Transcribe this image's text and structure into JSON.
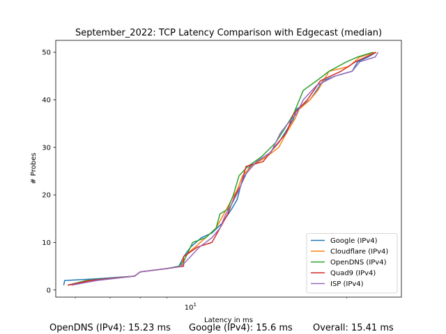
{
  "chart_data": {
    "type": "line",
    "title": "September_2022: TCP Latency Comparison with Edgecast (median)",
    "xlabel": "Latency in ms",
    "ylabel": "# Probes",
    "xscale": "log",
    "xlim": [
      5.5,
      25.5
    ],
    "ylim": [
      -1.5,
      52.5
    ],
    "x_tick_labels": [
      {
        "value": 10,
        "label": "10^1"
      }
    ],
    "y_ticks": [
      0,
      10,
      20,
      30,
      40,
      50
    ],
    "grid": false,
    "legend_position": "lower right",
    "series": [
      {
        "name": "Google (IPv4)",
        "color": "#1f77b4",
        "points": [
          [
            5.7,
            1
          ],
          [
            5.72,
            2
          ],
          [
            6.5,
            2.3
          ],
          [
            7.8,
            2.9
          ],
          [
            8.0,
            3.8
          ],
          [
            9.0,
            4.5
          ],
          [
            9.5,
            5
          ],
          [
            9.6,
            6
          ],
          [
            9.7,
            7
          ],
          [
            10.0,
            9
          ],
          [
            10.5,
            11
          ],
          [
            11,
            12
          ],
          [
            11.5,
            14
          ],
          [
            12,
            17
          ],
          [
            12.3,
            19
          ],
          [
            12.5,
            22
          ],
          [
            13,
            26
          ],
          [
            14,
            28
          ],
          [
            14.8,
            31
          ],
          [
            15.2,
            33
          ],
          [
            15.8,
            36
          ],
          [
            16,
            38
          ],
          [
            17,
            40
          ],
          [
            17.5,
            42
          ],
          [
            18,
            44
          ],
          [
            19,
            45
          ],
          [
            20.5,
            46
          ],
          [
            21,
            48
          ],
          [
            22,
            49
          ],
          [
            22.8,
            50
          ]
        ]
      },
      {
        "name": "Cloudflare (IPv4)",
        "color": "#ff7f0e",
        "points": [
          [
            5.8,
            1
          ],
          [
            6.5,
            2
          ],
          [
            7.8,
            2.9
          ],
          [
            8.0,
            3.8
          ],
          [
            9.0,
            4.5
          ],
          [
            9.6,
            5
          ],
          [
            9.7,
            7
          ],
          [
            10.2,
            9
          ],
          [
            10.7,
            11
          ],
          [
            11.2,
            13
          ],
          [
            11.6,
            16
          ],
          [
            12,
            19
          ],
          [
            12.3,
            21
          ],
          [
            12.6,
            24
          ],
          [
            13.1,
            26
          ],
          [
            14,
            28
          ],
          [
            14.8,
            30
          ],
          [
            15.3,
            33
          ],
          [
            15.9,
            36
          ],
          [
            16.2,
            38
          ],
          [
            17,
            40
          ],
          [
            17.6,
            42
          ],
          [
            18.5,
            46
          ],
          [
            20.2,
            47
          ],
          [
            21.2,
            49
          ],
          [
            22.7,
            50
          ]
        ]
      },
      {
        "name": "OpenDNS (IPv4)",
        "color": "#2ca02c",
        "points": [
          [
            5.8,
            1
          ],
          [
            6.3,
            2
          ],
          [
            7.8,
            2.9
          ],
          [
            8.0,
            3.8
          ],
          [
            9.0,
            4.5
          ],
          [
            9.5,
            5
          ],
          [
            9.7,
            6
          ],
          [
            10.1,
            10
          ],
          [
            10.7,
            11
          ],
          [
            11.2,
            13
          ],
          [
            11.4,
            16
          ],
          [
            11.8,
            17
          ],
          [
            12.1,
            20
          ],
          [
            12.4,
            24
          ],
          [
            12.9,
            26
          ],
          [
            13.7,
            28
          ],
          [
            14.6,
            31
          ],
          [
            15.2,
            34
          ],
          [
            15.8,
            37
          ],
          [
            16.5,
            42
          ],
          [
            17.5,
            44
          ],
          [
            18.5,
            46
          ],
          [
            20,
            48
          ],
          [
            21,
            49
          ],
          [
            22.5,
            50
          ]
        ]
      },
      {
        "name": "Quad9 (IPv4)",
        "color": "#d62728",
        "points": [
          [
            5.8,
            1
          ],
          [
            6.4,
            2
          ],
          [
            7.8,
            2.9
          ],
          [
            8.0,
            3.8
          ],
          [
            9.0,
            4.5
          ],
          [
            9.7,
            5
          ],
          [
            9.7,
            7
          ],
          [
            10.3,
            9
          ],
          [
            11.0,
            10
          ],
          [
            11.4,
            13
          ],
          [
            11.8,
            16
          ],
          [
            12.2,
            20
          ],
          [
            12.5,
            22
          ],
          [
            12.8,
            26
          ],
          [
            13.8,
            27
          ],
          [
            14.5,
            30
          ],
          [
            15.3,
            33
          ],
          [
            15.8,
            37
          ],
          [
            16.8,
            40
          ],
          [
            17.8,
            44
          ],
          [
            19.5,
            46
          ],
          [
            20.8,
            48
          ],
          [
            22.8,
            50
          ]
        ]
      },
      {
        "name": "ISP (IPv4)",
        "color": "#9467bd",
        "points": [
          [
            5.9,
            1
          ],
          [
            6.6,
            2
          ],
          [
            7.8,
            2.9
          ],
          [
            8.0,
            3.8
          ],
          [
            9.0,
            4.5
          ],
          [
            9.6,
            5
          ],
          [
            10.0,
            7
          ],
          [
            10.4,
            9
          ],
          [
            11.0,
            11
          ],
          [
            11.4,
            13
          ],
          [
            11.7,
            16
          ],
          [
            12.0,
            18
          ],
          [
            12.4,
            21
          ],
          [
            12.7,
            24
          ],
          [
            13.4,
            27
          ],
          [
            14.3,
            29
          ],
          [
            14.9,
            33
          ],
          [
            15.4,
            35
          ],
          [
            16.0,
            37
          ],
          [
            16.5,
            40
          ],
          [
            17.5,
            43
          ],
          [
            19.0,
            45
          ],
          [
            20.5,
            46
          ],
          [
            21.2,
            48
          ],
          [
            22.7,
            49
          ],
          [
            23.0,
            50
          ]
        ]
      }
    ]
  },
  "footer": {
    "opendns": "OpenDNS (IPv4): 15.23 ms",
    "google": "Google (IPv4): 15.6 ms",
    "overall": "Overall: 15.41 ms"
  }
}
